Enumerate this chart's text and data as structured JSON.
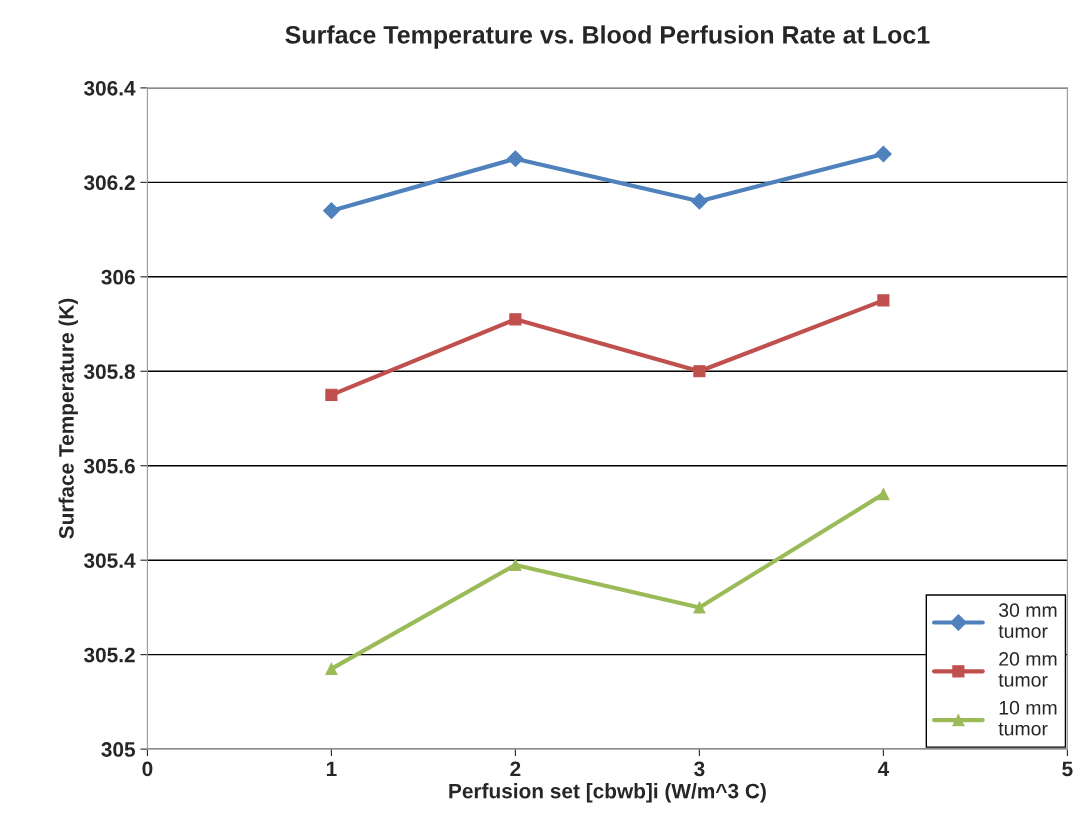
{
  "chart_data": {
    "type": "line",
    "title": "Surface Temperature vs. Blood Perfusion Rate at Loc1",
    "xlabel": "Perfusion set [cbwb]i (W/m^3 C)",
    "ylabel": "Surface Temperature (K)",
    "x": [
      1,
      2,
      3,
      4
    ],
    "series": [
      {
        "name": "30 mm\ntumor",
        "color": "#4f81bd",
        "marker": "diamond",
        "values": [
          306.14,
          306.25,
          306.16,
          306.26
        ]
      },
      {
        "name": "20 mm\ntumor",
        "color": "#c0504d",
        "marker": "square",
        "values": [
          305.75,
          305.91,
          305.8,
          305.95
        ]
      },
      {
        "name": "10 mm\ntumor",
        "color": "#9bbb59",
        "marker": "triangle",
        "values": [
          305.17,
          305.39,
          305.3,
          305.54
        ]
      }
    ],
    "xlim": [
      0,
      5
    ],
    "xticks": [
      0,
      1,
      2,
      3,
      4,
      5
    ],
    "ylim": [
      305,
      306.4
    ],
    "yticks": [
      305,
      305.2,
      305.4,
      305.6,
      305.8,
      306,
      306.2,
      306.4
    ],
    "grid": "y",
    "legend": "bottom right"
  }
}
